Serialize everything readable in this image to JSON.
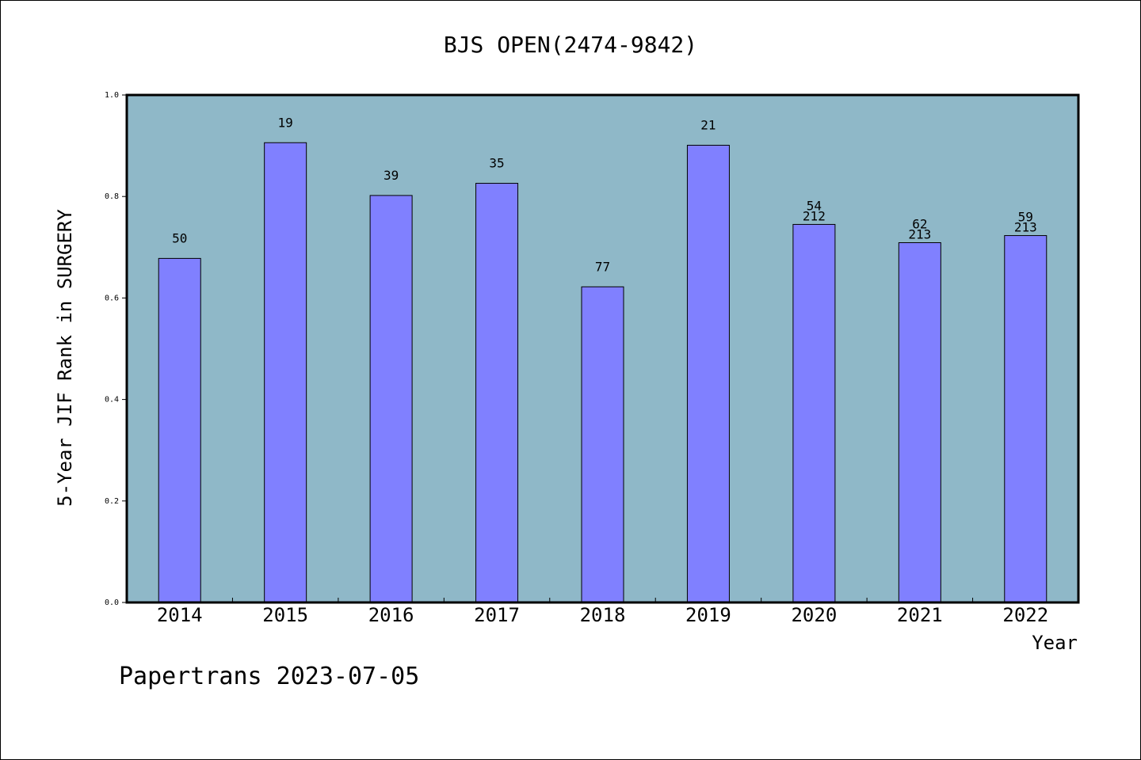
{
  "chart_data": {
    "type": "bar",
    "title": "BJS OPEN(2474-9842)",
    "xlabel": "Year",
    "ylabel": "5-Year JIF Rank in SURGERY",
    "ylim": [
      0,
      1.0
    ],
    "yticks": [
      "0.0",
      "0.2",
      "0.4",
      "0.6",
      "0.8",
      "1.0"
    ],
    "categories": [
      "2014",
      "2015",
      "2016",
      "2017",
      "2018",
      "2019",
      "2020",
      "2021",
      "2022"
    ],
    "values": [
      0.678,
      0.906,
      0.802,
      0.826,
      0.622,
      0.901,
      0.745,
      0.709,
      0.723
    ],
    "rank_labels": [
      "50",
      "19",
      "39",
      "35",
      "77",
      "21",
      "54",
      "62",
      "59"
    ],
    "total_labels": [
      "",
      "",
      "",
      "",
      "",
      "",
      "212",
      "213",
      "213"
    ],
    "colors": {
      "plot_bg": "#8fb8c8",
      "bar": "#8080ff",
      "bar_stroke": "#000000"
    },
    "grid": false
  },
  "footer": {
    "text": "Papertrans 2023-07-05"
  }
}
